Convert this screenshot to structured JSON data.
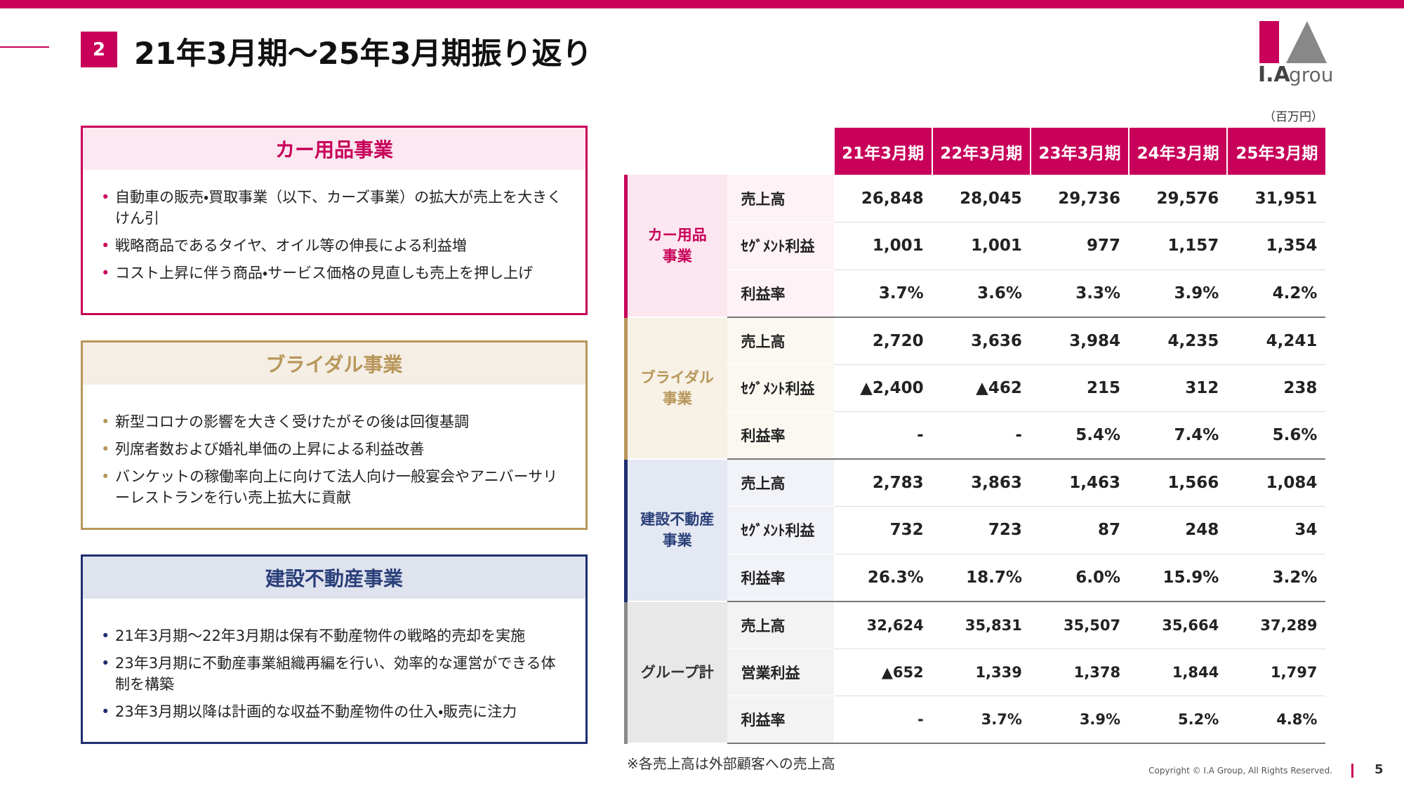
{
  "header": {
    "section_number": "2",
    "title": "21年3月期～25年3月期振り返り",
    "logo": {
      "mark": "I.A",
      "text": "group"
    }
  },
  "panels": [
    {
      "title": "カー用品事業",
      "bullets": [
        "自動車の販売・買取事業（以下、カーズ事業）の拡大が売上を大きくけん引",
        "戦略商品であるタイヤ、オイル等の伸長による利益増",
        "コスト上昇に伴う商品・サービス価格の見直しも売上を押し上げ"
      ]
    },
    {
      "title": "ブライダル事業",
      "bullets": [
        "新型コロナの影響を大きく受けたがその後は回復基調",
        "列席者数および婚礼単価の上昇による利益改善",
        "バンケットの稼働率向上に向けて法人向け一般宴会やアニバーサリーレストランを行い売上拡大に貢献"
      ]
    },
    {
      "title": "建設不動産事業",
      "bullets": [
        "21年3月期～22年3月期は保有不動産物件の戦略的売却を実施",
        "23年3月期に不動産事業組織再編を行い、効率的な運営ができる体制を構築",
        "23年3月期以降は計画的な収益不動産物件の仕入・販売に注力"
      ]
    }
  ],
  "table": {
    "unit": "（百万円）",
    "columns": [
      "21年3月期",
      "22年3月期",
      "23年3月期",
      "24年3月期",
      "25年3月期"
    ],
    "segments": [
      {
        "name_lines": [
          "カー用品",
          "事業"
        ],
        "rows": [
          {
            "label": "売上高",
            "values": [
              "26,848",
              "28,045",
              "29,736",
              "29,576",
              "31,951"
            ]
          },
          {
            "label": "ｾｸﾞﾒﾝﾄ利益",
            "values": [
              "1,001",
              "1,001",
              "977",
              "1,157",
              "1,354"
            ]
          },
          {
            "label": "利益率",
            "values": [
              "3.7%",
              "3.6%",
              "3.3%",
              "3.9%",
              "4.2%"
            ]
          }
        ]
      },
      {
        "name_lines": [
          "ブライダル",
          "事業"
        ],
        "rows": [
          {
            "label": "売上高",
            "values": [
              "2,720",
              "3,636",
              "3,984",
              "4,235",
              "4,241"
            ]
          },
          {
            "label": "ｾｸﾞﾒﾝﾄ利益",
            "values": [
              "▲2,400",
              "▲462",
              "215",
              "312",
              "238"
            ]
          },
          {
            "label": "利益率",
            "values": [
              "-",
              "-",
              "5.4%",
              "7.4%",
              "5.6%"
            ]
          }
        ]
      },
      {
        "name_lines": [
          "建設不動産",
          "事業"
        ],
        "rows": [
          {
            "label": "売上高",
            "values": [
              "2,783",
              "3,863",
              "1,463",
              "1,566",
              "1,084"
            ]
          },
          {
            "label": "ｾｸﾞﾒﾝﾄ利益",
            "values": [
              "732",
              "723",
              "87",
              "248",
              "34"
            ]
          },
          {
            "label": "利益率",
            "values": [
              "26.3%",
              "18.7%",
              "6.0%",
              "15.9%",
              "3.2%"
            ]
          }
        ]
      },
      {
        "name_lines": [
          "グループ計"
        ],
        "rows": [
          {
            "label": "売上高",
            "values": [
              "32,624",
              "35,831",
              "35,507",
              "35,664",
              "37,289"
            ]
          },
          {
            "label": "営業利益",
            "values": [
              "▲652",
              "1,339",
              "1,378",
              "1,844",
              "1,797"
            ]
          },
          {
            "label": "利益率",
            "values": [
              "-",
              "3.7%",
              "3.9%",
              "5.2%",
              "4.8%"
            ]
          }
        ]
      }
    ]
  },
  "footnote": "※各売上高は外部顧客への売上高",
  "copyright": "Copyright © I.A Group, All Rights Reserved.",
  "page_number": "5"
}
